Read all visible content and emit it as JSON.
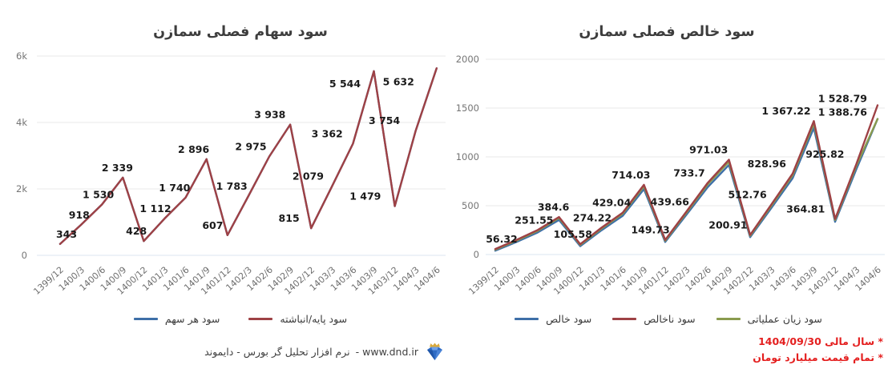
{
  "colors": {
    "blue": "#3e6fa8",
    "red": "#9e4145",
    "green": "#8a9b4e",
    "note_red": "#e41f1f",
    "grid": "#eaeaea",
    "zero_line": "#dbe4f0"
  },
  "chart_data": [
    {
      "id": "eps-quarterly",
      "type": "line",
      "title": "سود سهام فصلی سمازن",
      "categories": [
        "1399/12",
        "1400/3",
        "1400/6",
        "1400/9",
        "1400/12",
        "1401/3",
        "1401/6",
        "1401/9",
        "1401/12",
        "1402/3",
        "1402/6",
        "1402/9",
        "1402/12",
        "1403/3",
        "1403/6",
        "1403/9",
        "1403/12",
        "1404/3",
        "1404/6"
      ],
      "ylim": [
        0,
        6000
      ],
      "ytick_values": [
        0,
        2000,
        4000,
        6000
      ],
      "ytick_labels": [
        "0",
        "2k",
        "4k",
        "6k"
      ],
      "grid": true,
      "legend_position": "bottom",
      "legend": [
        {
          "label": "سود هر سهم",
          "color": "#3e6fa8"
        },
        {
          "label": "سود پایه/انباشته",
          "color": "#9e4145"
        }
      ],
      "series": [
        {
          "name": "سود هر سهم",
          "color": "#3e6fa8",
          "values": [
            343,
            918,
            1530,
            2339,
            428,
            1112,
            1740,
            2896,
            607,
            1783,
            2975,
            3938,
            815,
            2079,
            3362,
            5544,
            1479,
            3754,
            5632
          ]
        },
        {
          "name": "سود پایه/انباشته",
          "color": "#9e4145",
          "values": [
            343,
            918,
            1530,
            2339,
            428,
            1112,
            1740,
            2896,
            607,
            1783,
            2975,
            3938,
            815,
            2079,
            3362,
            5544,
            1479,
            3754,
            5632
          ]
        }
      ],
      "label_series": 1,
      "point_labels": [
        "343",
        "918",
        "1 530",
        "2 339",
        "428",
        "1 112",
        "1 740",
        "2 896",
        "607",
        "1 783",
        "2 975",
        "3 938",
        "815",
        "2 079",
        "3 362",
        "5 544",
        "1 479",
        "3 754",
        "5 632"
      ],
      "extra_labels": []
    },
    {
      "id": "net-profit-quarterly",
      "type": "line",
      "title": "سود خالص فصلی سمازن",
      "categories": [
        "1399/12",
        "1400/3",
        "1400/6",
        "1400/9",
        "1400/12",
        "1401/3",
        "1401/6",
        "1401/9",
        "1401/12",
        "1402/3",
        "1402/6",
        "1402/9",
        "1402/12",
        "1403/3",
        "1403/6",
        "1403/9",
        "1403/12",
        "1404/3",
        "1404/6"
      ],
      "ylim": [
        0,
        2000
      ],
      "ytick_values": [
        0,
        500,
        1000,
        1500,
        2000
      ],
      "ytick_labels": [
        "0",
        "500",
        "1000",
        "1500",
        "2000"
      ],
      "grid": true,
      "legend_position": "bottom",
      "legend": [
        {
          "label": "سود خالص",
          "color": "#3e6fa8"
        },
        {
          "label": "سود ناخالص",
          "color": "#9e4145"
        },
        {
          "label": "سود زیان عملیاتی",
          "color": "#8a9b4e"
        }
      ],
      "series": [
        {
          "name": "سود خالص",
          "color": "#3e6fa8",
          "values": [
            39,
            129,
            226,
            354,
            86,
            248,
            397,
            670,
            129,
            407,
            689,
            917,
            178,
            477,
            781,
            1297,
            335,
            874,
            1388.76
          ]
        },
        {
          "name": "سود زیان عملیاتی",
          "color": "#8a9b4e",
          "values": [
            50,
            143,
            243,
            374,
            99,
            265,
            418,
            698,
            142,
            428,
            718,
            951,
            193,
            500,
            811,
            1342,
            354,
            907,
            1388.76
          ]
        },
        {
          "name": "سود ناخالص",
          "color": "#9e4145",
          "values": [
            56.32,
            150,
            251.55,
            384.6,
            105.58,
            274.22,
            429.04,
            714.03,
            149.73,
            439.66,
            733.7,
            971.03,
            200.91,
            512.76,
            828.96,
            1367.22,
            364.81,
            925.82,
            1528.79
          ]
        }
      ],
      "label_series": 2,
      "point_labels": [
        "56.32",
        "",
        "251.55",
        "384.6",
        "105.58",
        "274.22",
        "429.04",
        "714.03",
        "149.73",
        "439.66",
        "733.7",
        "971.03",
        "200.91",
        "512.76",
        "828.96",
        "1 367.22",
        "364.81",
        "925.82",
        "1 528.79"
      ],
      "extra_labels": [
        {
          "index": 18,
          "label": "1 388.76",
          "value": 1388.76
        }
      ]
    }
  ],
  "footer": {
    "text": "نرم افزار تحلیل گر بورس - دایموند",
    "url": "- www.dnd.ir"
  },
  "notes": [
    "* سال مالی 1404/09/30",
    "* تمام قیمت میلیارد تومان"
  ]
}
